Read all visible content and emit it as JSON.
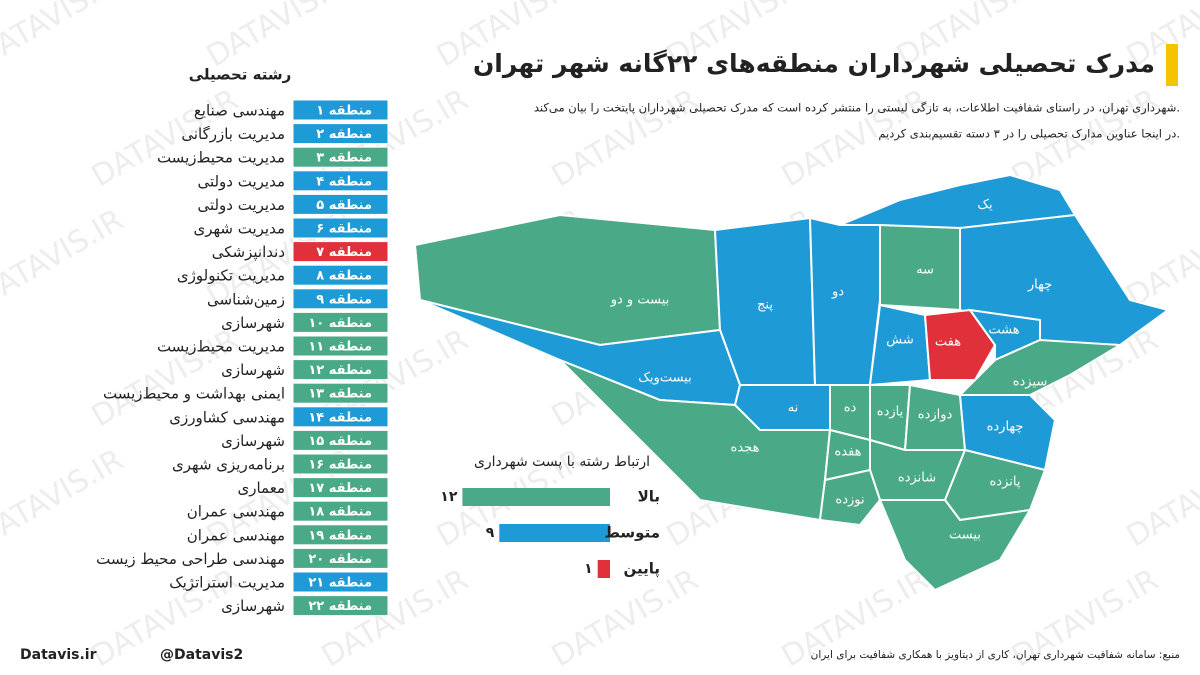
{
  "header": {
    "title": "مدرک تحصیلی شهرداران منطقه‌های ۲۲گانه شهر تهران",
    "lines": [
      "شهرداری تهران، در راستای شفافیت اطلاعات، به تازگی لیستی را منتشر کرده است که مدرک تحصیلی شهرداران پایتخت را بیان می‌کند.",
      "در اینجا عناوین مدارک تحصیلی را در ۳ دسته تقسیم‌بندی کردیم."
    ]
  },
  "watermark": "DATAVIS.IR",
  "list": {
    "title": "رشته تحصیلی",
    "rows": [
      {
        "region": "منطقه ۱",
        "field": "مهندسی صنایع",
        "color": "#1e9ad6"
      },
      {
        "region": "منطقه ۲",
        "field": "مدیریت بازرگانی",
        "color": "#1e9ad6"
      },
      {
        "region": "منطقه ۳",
        "field": "مدیریت محیط‌زیست",
        "color": "#4aa987"
      },
      {
        "region": "منطقه ۴",
        "field": "مدیریت دولتی",
        "color": "#1e9ad6"
      },
      {
        "region": "منطقه ۵",
        "field": "مدیریت دولتی",
        "color": "#1e9ad6"
      },
      {
        "region": "منطقه ۶",
        "field": "مدیریت شهری",
        "color": "#1e9ad6"
      },
      {
        "region": "منطقه ۷",
        "field": "دندانپزشکی",
        "color": "#e0303a"
      },
      {
        "region": "منطقه ۸",
        "field": "مدیریت تکنولوژی",
        "color": "#1e9ad6"
      },
      {
        "region": "منطقه ۹",
        "field": "زمین‌شناسی",
        "color": "#1e9ad6"
      },
      {
        "region": "منطقه ۱۰",
        "field": "شهرسازی",
        "color": "#4aa987"
      },
      {
        "region": "منطقه ۱۱",
        "field": "مدیریت محیط‌زیست",
        "color": "#4aa987"
      },
      {
        "region": "منطقه ۱۲",
        "field": "شهرسازی",
        "color": "#4aa987"
      },
      {
        "region": "منطقه ۱۳",
        "field": "ایمنی بهداشت و محیط‌زیست",
        "color": "#4aa987"
      },
      {
        "region": "منطقه ۱۴",
        "field": "مهندسی کشاورزی",
        "color": "#1e9ad6"
      },
      {
        "region": "منطقه ۱۵",
        "field": "شهرسازی",
        "color": "#4aa987"
      },
      {
        "region": "منطقه ۱۶",
        "field": "برنامه‌ریزی شهری",
        "color": "#4aa987"
      },
      {
        "region": "منطقه ۱۷",
        "field": "معماری",
        "color": "#4aa987"
      },
      {
        "region": "منطقه ۱۸",
        "field": "مهندسی عمران",
        "color": "#4aa987"
      },
      {
        "region": "منطقه ۱۹",
        "field": "مهندسی عمران",
        "color": "#4aa987"
      },
      {
        "region": "منطقه ۲۰",
        "field": "مهندسی طراحی محیط زیست",
        "color": "#4aa987"
      },
      {
        "region": "منطقه ۲۱",
        "field": "مدیریت استراتژیک",
        "color": "#1e9ad6"
      },
      {
        "region": "منطقه ۲۲",
        "field": "شهرسازی",
        "color": "#4aa987"
      }
    ]
  },
  "map": {
    "labels": [
      "یک",
      "دو",
      "سه",
      "چهار",
      "پنج",
      "شش",
      "هفت",
      "هشت",
      "نه",
      "ده",
      "یازده",
      "دوازده",
      "سیزده",
      "چهارده",
      "پانزده",
      "شانزده",
      "هفده",
      "هجده",
      "نوزده",
      "بیست",
      "بیست‌ویک",
      "بیست و دو"
    ]
  },
  "chart_data": {
    "type": "bar",
    "title": "ارتباط رشته با پست شهرداری",
    "categories": [
      "بالا",
      "متوسط",
      "پایین"
    ],
    "values": [
      12,
      9,
      1
    ],
    "value_labels": [
      "۱۲",
      "۹",
      "۱"
    ],
    "colors": [
      "#4aa987",
      "#1e9ad6",
      "#e0303a"
    ]
  },
  "footer": {
    "site": "Datavis.ir",
    "handle": "@Datavis2",
    "source": "منبع: سامانه شفافیت شهرداری تهران، کاری از دیتاویز با همکاری شفافیت برای ایران"
  }
}
